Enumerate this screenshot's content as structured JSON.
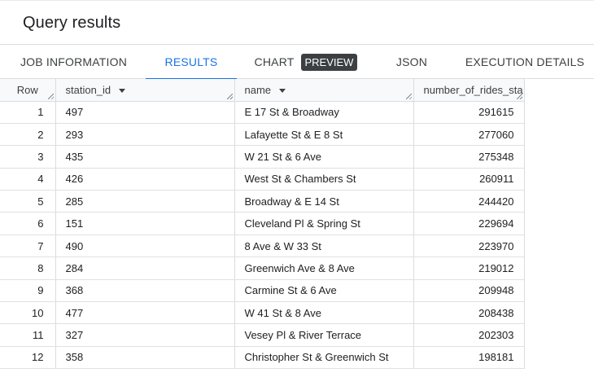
{
  "panel": {
    "title": "Query results"
  },
  "tabs": [
    {
      "label": "JOB INFORMATION"
    },
    {
      "label": "RESULTS"
    },
    {
      "label": "CHART",
      "badge": "PREVIEW"
    },
    {
      "label": "JSON"
    },
    {
      "label": "EXECUTION DETAILS"
    }
  ],
  "active_tab": "RESULTS",
  "table": {
    "columns": [
      "Row",
      "station_id",
      "name",
      "number_of_rides_sta"
    ],
    "rows": [
      {
        "row": "1",
        "station_id": "497",
        "name": "E 17 St & Broadway",
        "rides": "291615"
      },
      {
        "row": "2",
        "station_id": "293",
        "name": "Lafayette St & E 8 St",
        "rides": "277060"
      },
      {
        "row": "3",
        "station_id": "435",
        "name": "W 21 St & 6 Ave",
        "rides": "275348"
      },
      {
        "row": "4",
        "station_id": "426",
        "name": "West St & Chambers St",
        "rides": "260911"
      },
      {
        "row": "5",
        "station_id": "285",
        "name": "Broadway & E 14 St",
        "rides": "244420"
      },
      {
        "row": "6",
        "station_id": "151",
        "name": "Cleveland Pl & Spring St",
        "rides": "229694"
      },
      {
        "row": "7",
        "station_id": "490",
        "name": "8 Ave & W 33 St",
        "rides": "223970"
      },
      {
        "row": "8",
        "station_id": "284",
        "name": "Greenwich Ave & 8 Ave",
        "rides": "219012"
      },
      {
        "row": "9",
        "station_id": "368",
        "name": "Carmine St & 6 Ave",
        "rides": "209948"
      },
      {
        "row": "10",
        "station_id": "477",
        "name": "W 41 St & 8 Ave",
        "rides": "208438"
      },
      {
        "row": "11",
        "station_id": "327",
        "name": "Vesey Pl & River Terrace",
        "rides": "202303"
      },
      {
        "row": "12",
        "station_id": "358",
        "name": "Christopher St & Greenwich St",
        "rides": "198181"
      }
    ]
  },
  "colors": {
    "accent": "#1a73e8",
    "badge_bg": "#3c4043",
    "border": "#dadce0"
  }
}
